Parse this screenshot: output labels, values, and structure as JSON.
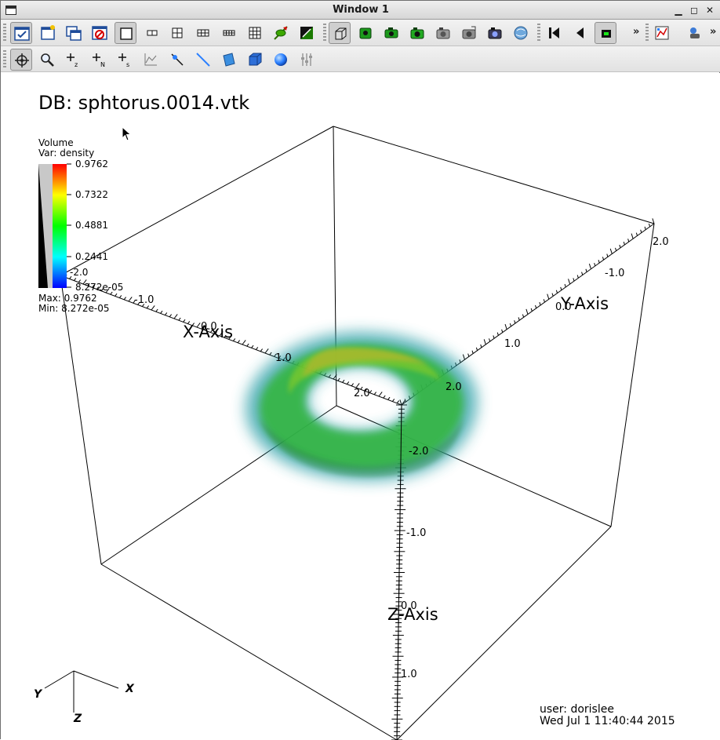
{
  "window": {
    "title": "Window 1"
  },
  "toolbar1": {
    "icons": [
      "active-window-icon",
      "new-window-icon",
      "clone-window-icon",
      "delete-window-icon",
      "layout-1x1-icon",
      "layout-1x2-icon",
      "layout-2x2-icon",
      "layout-2x3-icon",
      "layout-2x4-icon",
      "layout-3x3-icon",
      "spin-icon",
      "invert-background-icon",
      "perspective-icon",
      "lock-view-icon",
      "lock-time-icon",
      "lock-tools-icon",
      "save-image-icon",
      "print-icon",
      "camera-icon",
      "animation-icon",
      "reverse-step-icon",
      "play-reverse-icon",
      "stop-icon",
      "overflow-icon",
      "plot-icon",
      "share-icon",
      "overflow-icon-2"
    ]
  },
  "toolbar2": {
    "icons": [
      "navigate-icon",
      "zoom-icon",
      "zone-pick-icon",
      "node-pick-icon",
      "spreadsheet-pick-icon",
      "lineout-icon",
      "point-tool-icon",
      "line-tool-icon",
      "plane-tool-icon",
      "box-tool-icon",
      "sphere-tool-icon",
      "axis-restriction-icon"
    ]
  },
  "plot": {
    "db_title": "DB: sphtorus.0014.vtk",
    "legend": {
      "plot_type": "Volume",
      "var_label": "Var: density",
      "ticks": [
        "0.9762",
        "0.7322",
        "0.4881",
        "0.2441",
        "8.272e-05"
      ],
      "max_label": "Max: 0.9762",
      "min_label": "Min: 8.272e-05",
      "overlap_axis_label": "-2.0"
    },
    "axes": {
      "x_axis_title": "X-Axis",
      "y_axis_title": "Y-Axis",
      "z_axis_title": "Z-Axis",
      "x_ticks": [
        "-1.0",
        "0.0",
        "1.0",
        "2.0"
      ],
      "y_ticks": [
        "2.0",
        "-1.0",
        "0.0",
        "1.0",
        "2.0"
      ],
      "z_ticks": [
        "-2.0",
        "-1.0",
        "0.0",
        "1.0"
      ]
    },
    "triad": {
      "x": "X",
      "y": "Y",
      "z": "Z"
    },
    "user_info": {
      "user": "user: dorislee",
      "date": "Wed Jul  1 11:40:44 2015"
    }
  }
}
